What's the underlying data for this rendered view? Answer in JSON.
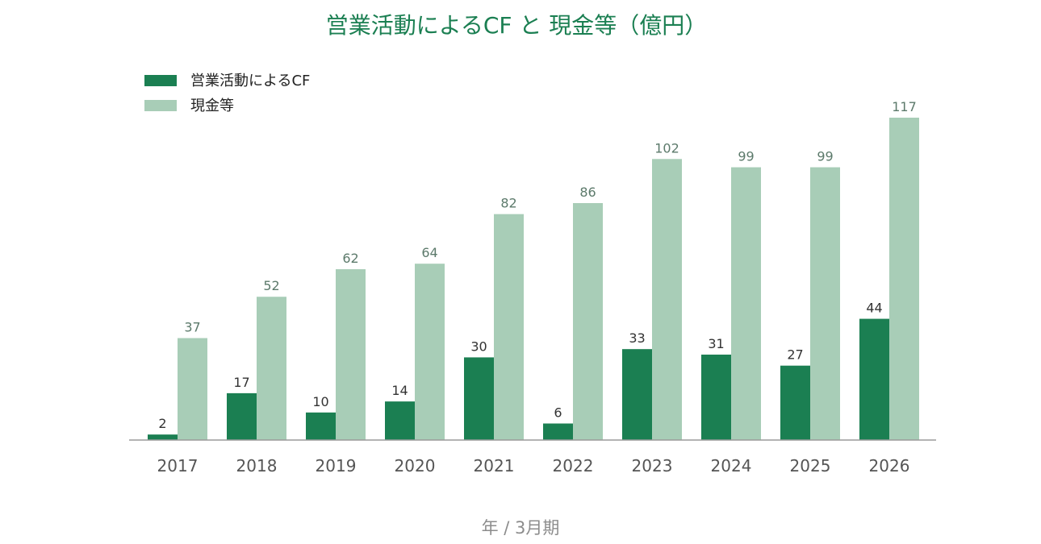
{
  "chart_data": {
    "type": "bar",
    "title": "営業活動によるCF と 現金等（億円）",
    "xlabel": "年 / 3月期",
    "ylabel": "",
    "ylim": [
      0,
      120
    ],
    "grid": false,
    "legend_placement": "top-left",
    "categories": [
      "2017",
      "2018",
      "2019",
      "2020",
      "2021",
      "2022",
      "2023",
      "2024",
      "2025",
      "2026"
    ],
    "series": [
      {
        "name": "営業活動によるCF",
        "color": "#1b7f52",
        "values": [
          2,
          17,
          10,
          14,
          30,
          6,
          33,
          31,
          27,
          44
        ]
      },
      {
        "name": "現金等",
        "color": "#a8cdb7",
        "values": [
          37,
          52,
          62,
          64,
          82,
          86,
          102,
          99,
          99,
          117
        ]
      }
    ]
  }
}
